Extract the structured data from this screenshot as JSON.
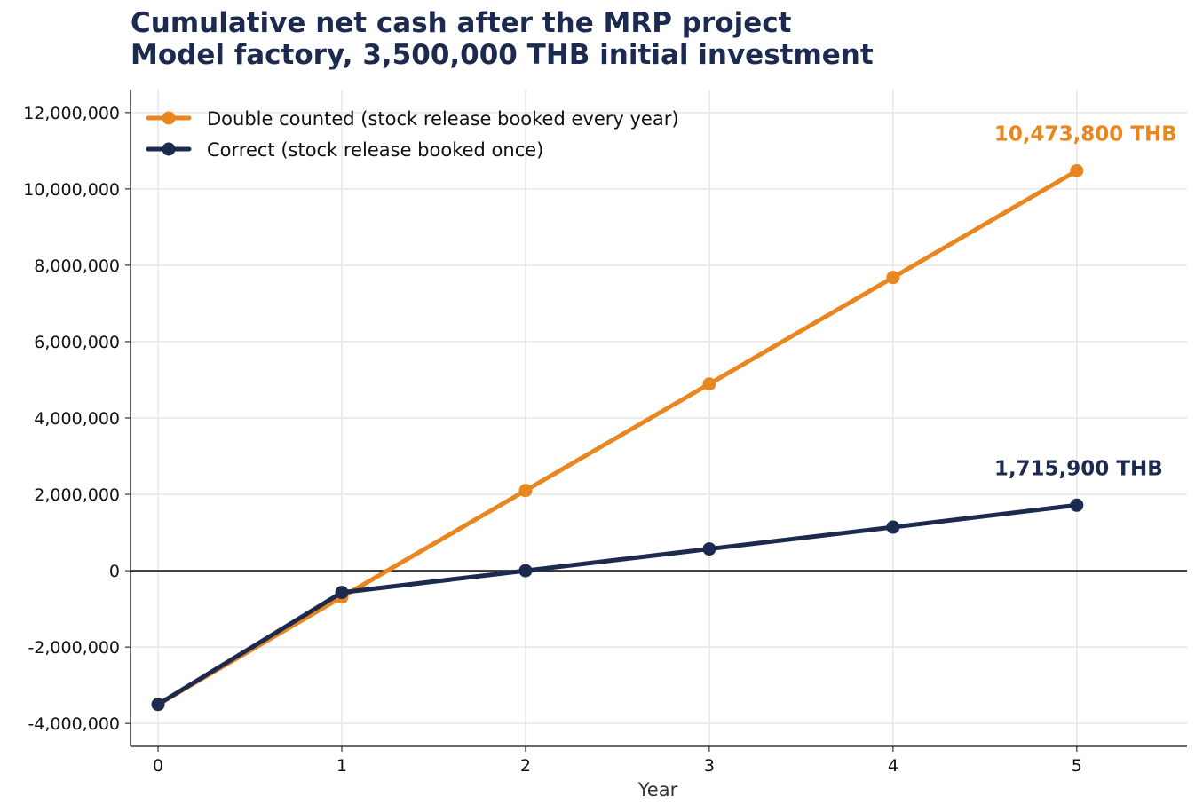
{
  "chart_data": {
    "type": "line",
    "title": "Cumulative net cash after the MRP project",
    "subtitle": "Model factory, 3,500,000 THB initial investment",
    "xlabel": "Year",
    "ylabel": "",
    "x": [
      0,
      1,
      2,
      3,
      4,
      5
    ],
    "xlim": [
      -0.15,
      5.6
    ],
    "ylim": [
      -4600000,
      12600000
    ],
    "x_ticks": [
      "0",
      "1",
      "2",
      "3",
      "4",
      "5"
    ],
    "y_ticks": [
      {
        "value": -4000000,
        "label": "-4,000,000"
      },
      {
        "value": -2000000,
        "label": "-2,000,000"
      },
      {
        "value": 0,
        "label": "0"
      },
      {
        "value": 2000000,
        "label": "2,000,000"
      },
      {
        "value": 4000000,
        "label": "4,000,000"
      },
      {
        "value": 6000000,
        "label": "6,000,000"
      },
      {
        "value": 8000000,
        "label": "8,000,000"
      },
      {
        "value": 10000000,
        "label": "10,000,000"
      },
      {
        "value": 12000000,
        "label": "12,000,000"
      }
    ],
    "grid": true,
    "legend_position": "top-left",
    "series": [
      {
        "name": "Double counted (stock release booked every year)",
        "color": "#e8861f",
        "values": [
          -3500000,
          -690000,
          2100000,
          4890000,
          7680000,
          10473800
        ],
        "end_label": "10,473,800 THB"
      },
      {
        "name": "Correct (stock release booked once)",
        "color": "#1b2a4e",
        "values": [
          -3500000,
          -570000,
          0,
          570000,
          1140000,
          1715900
        ],
        "end_label": "1,715,900 THB"
      }
    ]
  }
}
